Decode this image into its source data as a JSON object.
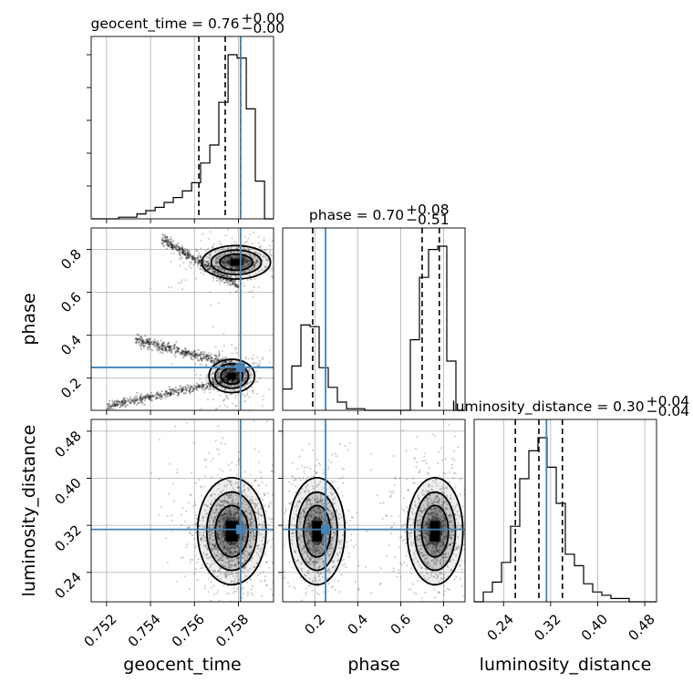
{
  "chart_data": {
    "type": "corner",
    "parameters": [
      "geocent_time",
      "phase",
      "luminosity_distance"
    ],
    "axis_labels": {
      "geocent_time": "geocent_time",
      "phase": "phase",
      "luminosity_distance": "luminosity_distance"
    },
    "ranges": {
      "geocent_time": [
        0.7513,
        0.7596
      ],
      "phase": [
        0.05,
        0.9
      ],
      "luminosity_distance": [
        0.19,
        0.5
      ]
    },
    "ticks": {
      "geocent_time": {
        "values": [
          0.752,
          0.754,
          0.756,
          0.758
        ],
        "labels": [
          "0.752",
          "0.754",
          "0.756",
          "0.758"
        ]
      },
      "phase": {
        "values": [
          0.2,
          0.4,
          0.6,
          0.8
        ],
        "labels": [
          "0.2",
          "0.4",
          "0.6",
          "0.8"
        ]
      },
      "luminosity_distance": {
        "values": [
          0.24,
          0.32,
          0.4,
          0.48
        ],
        "labels": [
          "0.24",
          "0.32",
          "0.40",
          "0.48"
        ]
      }
    },
    "truths": {
      "geocent_time": 0.7581,
      "phase": 0.25,
      "luminosity_distance": 0.313
    },
    "titles": [
      {
        "name": "geocent_time",
        "value": "0.76",
        "plus": "+0.00",
        "minus": "−0.00"
      },
      {
        "name": "phase",
        "value": "0.70",
        "plus": "+0.08",
        "minus": "−0.51"
      },
      {
        "name": "luminosity_distance",
        "value": "0.30",
        "plus": "+0.04",
        "minus": "−0.04"
      }
    ],
    "histograms": {
      "geocent_time": {
        "edges": [
          0.7513,
          0.75172,
          0.75213,
          0.75255,
          0.75296,
          0.75338,
          0.75379,
          0.75421,
          0.75462,
          0.75504,
          0.75545,
          0.75587,
          0.75628,
          0.7567,
          0.75711,
          0.75753,
          0.75794,
          0.75836,
          0.75877,
          0.75919,
          0.7596
        ],
        "counts": [
          0,
          0,
          0,
          1,
          1,
          3,
          5,
          7,
          10,
          13,
          17,
          22,
          34,
          45,
          71,
          100,
          98,
          67,
          23,
          0
        ],
        "quantiles": [
          0.7562,
          0.7574,
          0.7581
        ]
      },
      "phase": {
        "edges": [
          0.05,
          0.0925,
          0.135,
          0.1775,
          0.22,
          0.2625,
          0.305,
          0.3475,
          0.39,
          0.4325,
          0.475,
          0.5175,
          0.56,
          0.6025,
          0.645,
          0.6875,
          0.73,
          0.7725,
          0.815,
          0.8575,
          0.9
        ],
        "counts": [
          13,
          27,
          52,
          51,
          26,
          14,
          5,
          1,
          1,
          0,
          0,
          0,
          0,
          0,
          43,
          81,
          98,
          100,
          30,
          0
        ],
        "quantiles": [
          0.19,
          0.7,
          0.78
        ]
      },
      "luminosity_distance": {
        "edges": [
          0.19,
          0.2055,
          0.221,
          0.2365,
          0.252,
          0.2675,
          0.283,
          0.2985,
          0.314,
          0.3295,
          0.345,
          0.3605,
          0.376,
          0.3915,
          0.407,
          0.4225,
          0.438,
          0.4535,
          0.469,
          0.4845,
          0.5
        ],
        "counts": [
          0,
          6,
          12,
          24,
          46,
          75,
          92,
          100,
          82,
          60,
          29,
          22,
          11,
          6,
          4,
          2,
          2,
          0,
          0,
          0
        ],
        "quantiles": [
          0.26,
          0.3,
          0.34
        ]
      }
    }
  }
}
